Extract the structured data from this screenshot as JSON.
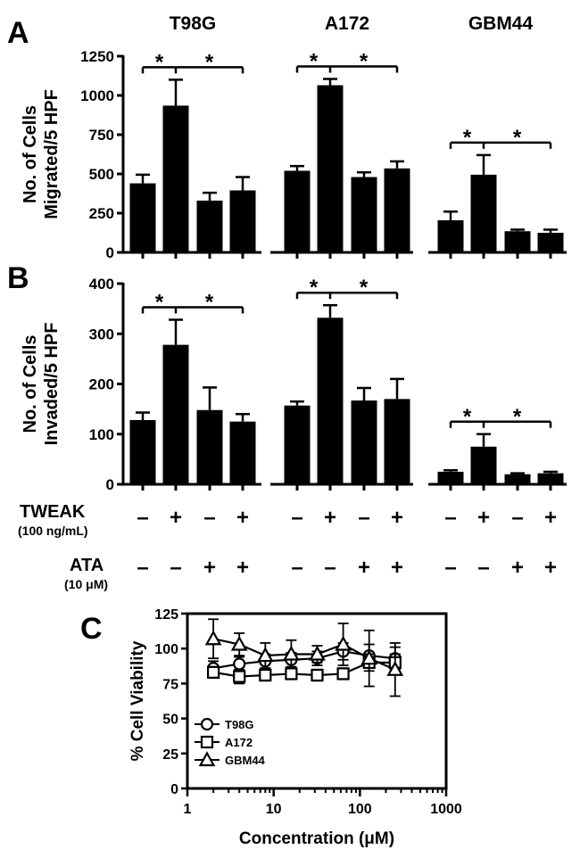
{
  "chart_data": [
    {
      "panel": "A",
      "type": "bar",
      "ylabel_line1": "No. of Cells",
      "ylabel_line2": "Migrated/5 HPF",
      "ylim": [
        0,
        1250
      ],
      "yticks": [
        0,
        250,
        500,
        750,
        1000,
        1250
      ],
      "groups": [
        {
          "name": "T98G",
          "values": [
            440,
            935,
            330,
            395
          ],
          "errors": [
            55,
            165,
            50,
            85
          ],
          "significance": "*"
        },
        {
          "name": "A172",
          "values": [
            520,
            1065,
            480,
            535
          ],
          "errors": [
            30,
            40,
            30,
            45
          ],
          "significance": "*"
        },
        {
          "name": "GBM44",
          "values": [
            205,
            495,
            135,
            125
          ],
          "errors": [
            55,
            125,
            10,
            20
          ],
          "significance": "*"
        }
      ]
    },
    {
      "panel": "B",
      "type": "bar",
      "ylabel_line1": "No. of Cells",
      "ylabel_line2": "Invaded/5 HPF",
      "ylim": [
        0,
        400
      ],
      "yticks": [
        0,
        100,
        200,
        300,
        400
      ],
      "groups": [
        {
          "name": "T98G",
          "values": [
            128,
            278,
            148,
            125
          ],
          "errors": [
            15,
            50,
            45,
            15
          ],
          "significance": "*"
        },
        {
          "name": "A172",
          "values": [
            157,
            332,
            167,
            170
          ],
          "errors": [
            8,
            25,
            25,
            40
          ],
          "significance": "*"
        },
        {
          "name": "GBM44",
          "values": [
            25,
            75,
            20,
            22
          ],
          "errors": [
            3,
            25,
            2,
            3
          ],
          "significance": "*"
        }
      ]
    },
    {
      "panel": "C",
      "type": "line",
      "xscale": "log",
      "xlabel": "Concentration (μM)",
      "ylabel": "% Cell Viability",
      "xlim": [
        1,
        1000
      ],
      "ylim": [
        0,
        125
      ],
      "xticks": [
        1,
        10,
        100,
        1000
      ],
      "yticks": [
        0,
        25,
        50,
        75,
        100,
        125
      ],
      "x": [
        2,
        4,
        8,
        16,
        32,
        64,
        128,
        256
      ],
      "series": [
        {
          "name": "T98G",
          "marker": "circle",
          "values": [
            86,
            89,
            91,
            92,
            93,
            98,
            95,
            93
          ],
          "errors": [
            5,
            5,
            5,
            5,
            5,
            6,
            8,
            8
          ]
        },
        {
          "name": "A172",
          "marker": "square",
          "values": [
            83,
            80,
            81,
            82,
            81,
            82,
            90,
            90
          ],
          "errors": [
            4,
            5,
            4,
            4,
            4,
            4,
            6,
            6
          ]
        },
        {
          "name": "GBM44",
          "marker": "triangle",
          "values": [
            107,
            103,
            95,
            96,
            96,
            103,
            93,
            85
          ],
          "errors": [
            14,
            8,
            9,
            10,
            6,
            15,
            20,
            19
          ]
        }
      ]
    }
  ],
  "treatments": {
    "tweak_label": "TWEAK",
    "tweak_sub": "(100 ng/mL)",
    "tweak_pattern": [
      "–",
      "+",
      "–",
      "+"
    ],
    "ata_label": "ATA",
    "ata_sub": "(10 μM)",
    "ata_pattern": [
      "–",
      "–",
      "+",
      "+"
    ]
  },
  "colors": {
    "bar": "#000000",
    "marker_fill": "#ffffff",
    "ink": "#000000"
  }
}
